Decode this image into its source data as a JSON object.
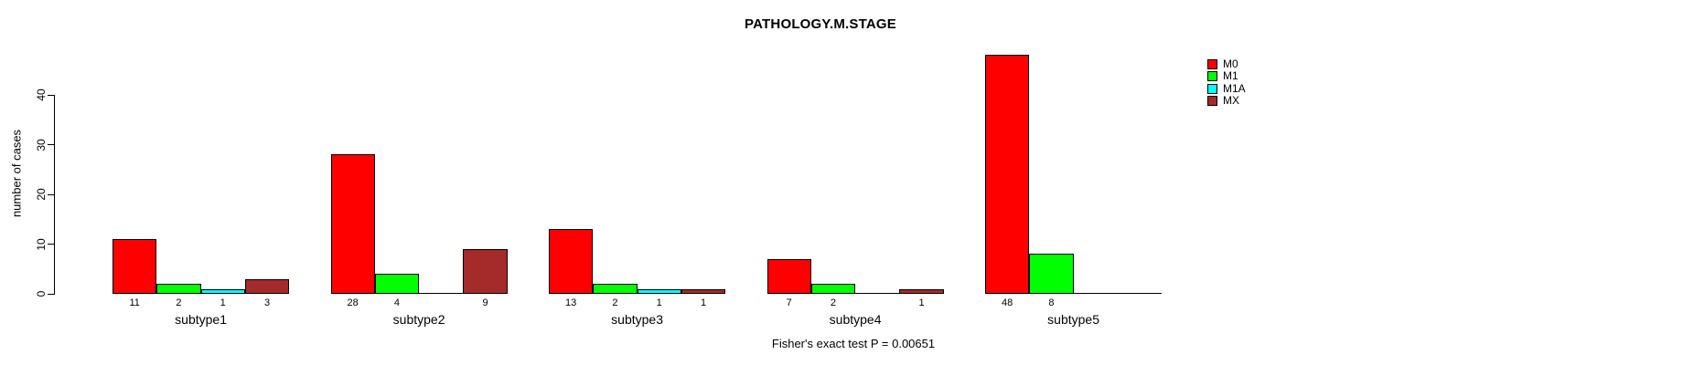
{
  "title": "PATHOLOGY.M.STAGE",
  "footer": "Fisher's exact test P = 0.00651",
  "chart_data": {
    "type": "bar",
    "title": "PATHOLOGY.M.STAGE",
    "xlabel": "",
    "ylabel": "number of cases",
    "ylim": [
      0,
      40
    ],
    "yticks": [
      0,
      10,
      20,
      30,
      40
    ],
    "grid": false,
    "legend_position": "right-outside",
    "categories": [
      "subtype1",
      "subtype2",
      "subtype3",
      "subtype4",
      "subtype5"
    ],
    "series": [
      {
        "name": "M0",
        "color": "#ff0000",
        "values": [
          11,
          28,
          13,
          7,
          48
        ]
      },
      {
        "name": "M1",
        "color": "#00ff00",
        "values": [
          2,
          4,
          2,
          2,
          8
        ]
      },
      {
        "name": "M1A",
        "color": "#00ffff",
        "values": [
          1,
          0,
          1,
          0,
          0
        ]
      },
      {
        "name": "MX",
        "color": "#a52a2a",
        "values": [
          3,
          9,
          1,
          1,
          0
        ]
      }
    ],
    "bar_value_labels": {
      "subtype1": [
        11,
        2,
        1,
        3
      ],
      "subtype2": [
        28,
        4,
        null,
        9
      ],
      "subtype3": [
        13,
        2,
        1,
        1
      ],
      "subtype4": [
        7,
        2,
        null,
        1
      ],
      "subtype5": [
        48,
        8,
        null,
        null
      ]
    },
    "annotation": "Fisher's exact test P = 0.00651"
  }
}
